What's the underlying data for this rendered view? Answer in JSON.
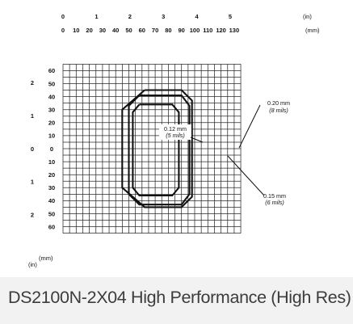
{
  "caption": "DS2100N-2X04 High Performance (High Res)",
  "chart_data": {
    "type": "line",
    "title": "DS2100N-2X04 High Performance (High Res)",
    "x_axis": {
      "unit_label_mm": "(mm)",
      "unit_label_in": "(in)",
      "mm_ticks": [
        0,
        10,
        20,
        30,
        40,
        50,
        60,
        70,
        80,
        90,
        100,
        110,
        120,
        130
      ],
      "in_ticks": [
        {
          "label": "0",
          "mm": 0
        },
        {
          "label": "1",
          "mm": 25.4
        },
        {
          "label": "2",
          "mm": 50.8
        },
        {
          "label": "3",
          "mm": 76.2
        },
        {
          "label": "4",
          "mm": 101.6
        },
        {
          "label": "5",
          "mm": 127
        }
      ],
      "range": [
        0,
        135
      ]
    },
    "y_axis": {
      "unit_label_mm": "(mm)",
      "unit_label_in": "(in)",
      "mm_ticks": [
        {
          "label": "60",
          "v": 60
        },
        {
          "label": "50",
          "v": 50
        },
        {
          "label": "40",
          "v": 40
        },
        {
          "label": "30",
          "v": 30
        },
        {
          "label": "20",
          "v": 20
        },
        {
          "label": "10",
          "v": 10
        },
        {
          "label": "0",
          "v": 0
        },
        {
          "label": "10",
          "v": -10
        },
        {
          "label": "20",
          "v": -20
        },
        {
          "label": "30",
          "v": -30
        },
        {
          "label": "40",
          "v": -40
        },
        {
          "label": "50",
          "v": -50
        },
        {
          "label": "60",
          "v": -60
        }
      ],
      "in_ticks": [
        {
          "label": "2",
          "v": 50.8
        },
        {
          "label": "1",
          "v": 25.4
        },
        {
          "label": "0",
          "v": 0
        },
        {
          "label": "1",
          "v": -25.4
        },
        {
          "label": "2",
          "v": -50.8
        }
      ],
      "range": [
        -65,
        65
      ]
    },
    "grid": true,
    "series": [
      {
        "name": "0.12 mm (5 mils)",
        "label_line1": "0.12 mm",
        "label_line2": "(5 mils)",
        "points": [
          [
            58,
            34
          ],
          [
            83,
            34
          ],
          [
            88,
            28
          ],
          [
            88,
            -30
          ],
          [
            83,
            -36
          ],
          [
            58,
            -36
          ],
          [
            53,
            -30
          ],
          [
            53,
            28
          ],
          [
            58,
            34
          ]
        ]
      },
      {
        "name": "0.15 mm (6 mils)",
        "label_line1": "0.15 mm",
        "label_line2": "(6 mils)",
        "points": [
          [
            58,
            41
          ],
          [
            90,
            41
          ],
          [
            96,
            33
          ],
          [
            96,
            -35
          ],
          [
            90,
            -43
          ],
          [
            58,
            -43
          ],
          [
            50,
            -35
          ],
          [
            50,
            33
          ],
          [
            58,
            41
          ]
        ]
      },
      {
        "name": "0.20 mm (8 mils)",
        "label_line1": "0.20 mm",
        "label_line2": "(8 mils)",
        "points": [
          [
            62,
            45
          ],
          [
            90,
            45
          ],
          [
            98,
            37
          ],
          [
            98,
            -37
          ],
          [
            90,
            -45
          ],
          [
            62,
            -45
          ],
          [
            45,
            -30
          ],
          [
            45,
            30
          ],
          [
            62,
            45
          ]
        ]
      }
    ]
  }
}
